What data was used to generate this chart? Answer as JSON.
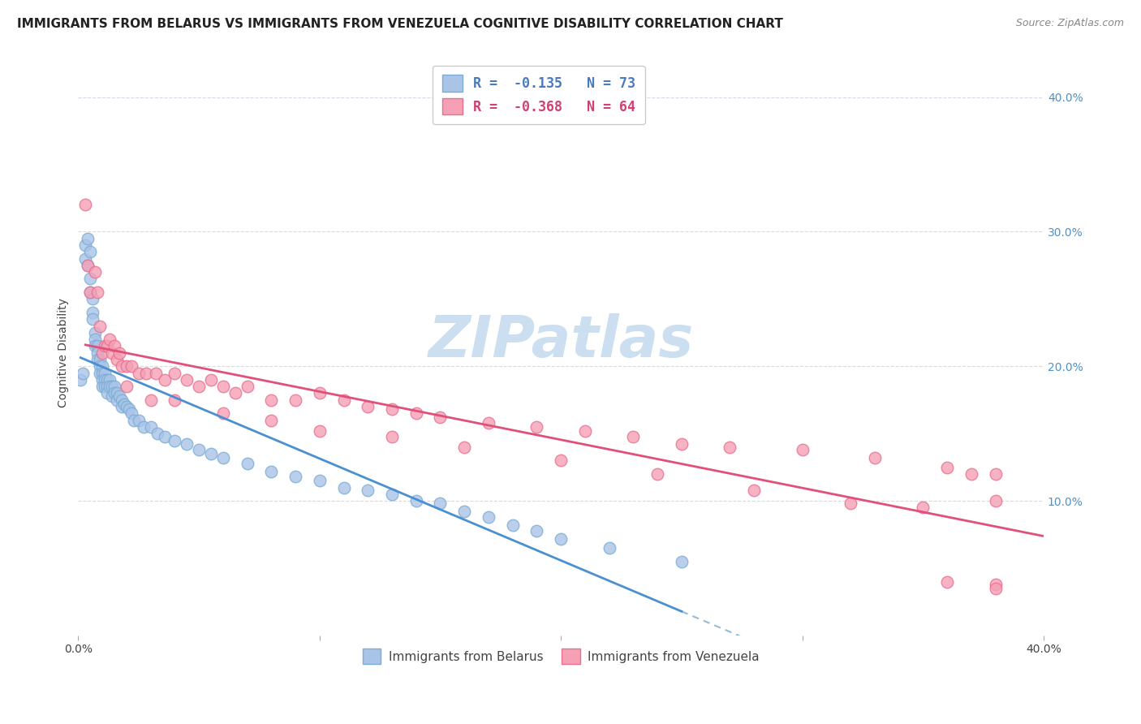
{
  "title": "IMMIGRANTS FROM BELARUS VS IMMIGRANTS FROM VENEZUELA COGNITIVE DISABILITY CORRELATION CHART",
  "source": "Source: ZipAtlas.com",
  "ylabel": "Cognitive Disability",
  "legend_belarus": "R =  -0.135   N = 73",
  "legend_venezuela": "R =  -0.368   N = 64",
  "belarus_color": "#aac4e8",
  "venezuela_color": "#f5a0b5",
  "belarus_edge": "#7aadd5",
  "venezuela_edge": "#e87090",
  "trend_belarus_color": "#4a90d0",
  "trend_venezuela_color": "#e0507a",
  "dashed_line_color": "#90bcd8",
  "watermark_color": "#ccdff0",
  "belarus_data_x": [
    0.001,
    0.002,
    0.003,
    0.003,
    0.004,
    0.004,
    0.005,
    0.005,
    0.005,
    0.006,
    0.006,
    0.006,
    0.007,
    0.007,
    0.007,
    0.008,
    0.008,
    0.008,
    0.009,
    0.009,
    0.009,
    0.01,
    0.01,
    0.01,
    0.01,
    0.011,
    0.011,
    0.011,
    0.012,
    0.012,
    0.012,
    0.013,
    0.013,
    0.014,
    0.014,
    0.015,
    0.015,
    0.016,
    0.016,
    0.017,
    0.018,
    0.018,
    0.019,
    0.02,
    0.021,
    0.022,
    0.023,
    0.025,
    0.027,
    0.03,
    0.033,
    0.036,
    0.04,
    0.045,
    0.05,
    0.055,
    0.06,
    0.07,
    0.08,
    0.09,
    0.1,
    0.11,
    0.12,
    0.13,
    0.14,
    0.15,
    0.16,
    0.17,
    0.18,
    0.19,
    0.2,
    0.22,
    0.25
  ],
  "belarus_data_y": [
    0.19,
    0.195,
    0.29,
    0.28,
    0.295,
    0.275,
    0.285,
    0.265,
    0.255,
    0.25,
    0.24,
    0.235,
    0.225,
    0.22,
    0.215,
    0.215,
    0.21,
    0.205,
    0.205,
    0.2,
    0.195,
    0.2,
    0.195,
    0.19,
    0.185,
    0.195,
    0.19,
    0.185,
    0.19,
    0.185,
    0.18,
    0.19,
    0.185,
    0.185,
    0.178,
    0.185,
    0.18,
    0.18,
    0.175,
    0.178,
    0.175,
    0.17,
    0.172,
    0.17,
    0.168,
    0.165,
    0.16,
    0.16,
    0.155,
    0.155,
    0.15,
    0.148,
    0.145,
    0.142,
    0.138,
    0.135,
    0.132,
    0.128,
    0.122,
    0.118,
    0.115,
    0.11,
    0.108,
    0.105,
    0.1,
    0.098,
    0.092,
    0.088,
    0.082,
    0.078,
    0.072,
    0.065,
    0.055
  ],
  "venezuela_data_x": [
    0.003,
    0.004,
    0.005,
    0.007,
    0.008,
    0.009,
    0.01,
    0.011,
    0.012,
    0.013,
    0.014,
    0.015,
    0.016,
    0.017,
    0.018,
    0.02,
    0.022,
    0.025,
    0.028,
    0.032,
    0.036,
    0.04,
    0.045,
    0.05,
    0.055,
    0.06,
    0.065,
    0.07,
    0.08,
    0.09,
    0.1,
    0.11,
    0.12,
    0.13,
    0.14,
    0.15,
    0.17,
    0.19,
    0.21,
    0.23,
    0.25,
    0.27,
    0.3,
    0.33,
    0.36,
    0.38,
    0.02,
    0.03,
    0.04,
    0.06,
    0.08,
    0.1,
    0.13,
    0.16,
    0.2,
    0.24,
    0.28,
    0.32,
    0.36,
    0.38,
    0.38,
    0.37,
    0.35,
    0.38
  ],
  "venezuela_data_y": [
    0.32,
    0.275,
    0.255,
    0.27,
    0.255,
    0.23,
    0.21,
    0.215,
    0.215,
    0.22,
    0.21,
    0.215,
    0.205,
    0.21,
    0.2,
    0.2,
    0.2,
    0.195,
    0.195,
    0.195,
    0.19,
    0.195,
    0.19,
    0.185,
    0.19,
    0.185,
    0.18,
    0.185,
    0.175,
    0.175,
    0.18,
    0.175,
    0.17,
    0.168,
    0.165,
    0.162,
    0.158,
    0.155,
    0.152,
    0.148,
    0.142,
    0.14,
    0.138,
    0.132,
    0.125,
    0.12,
    0.185,
    0.175,
    0.175,
    0.165,
    0.16,
    0.152,
    0.148,
    0.14,
    0.13,
    0.12,
    0.108,
    0.098,
    0.04,
    0.038,
    0.1,
    0.12,
    0.095,
    0.035
  ],
  "xlim": [
    0.0,
    0.4
  ],
  "ylim": [
    0.0,
    0.42
  ],
  "xticks": [
    0.0,
    0.1,
    0.2,
    0.3,
    0.4
  ],
  "xticklabels": [
    "0.0%",
    "",
    "",
    "",
    "40.0%"
  ],
  "right_yticks": [
    0.1,
    0.2,
    0.3,
    0.4
  ],
  "right_yticklabels": [
    "10.0%",
    "20.0%",
    "30.0%",
    "40.0%"
  ],
  "background_color": "#ffffff",
  "grid_color": "#d8d8e8",
  "title_fontsize": 11,
  "axis_fontsize": 10,
  "watermark_text": "ZIPatlas",
  "watermark_fontsize": 52,
  "bottom_legend_label1": "Immigrants from Belarus",
  "bottom_legend_label2": "Immigrants from Venezuela"
}
